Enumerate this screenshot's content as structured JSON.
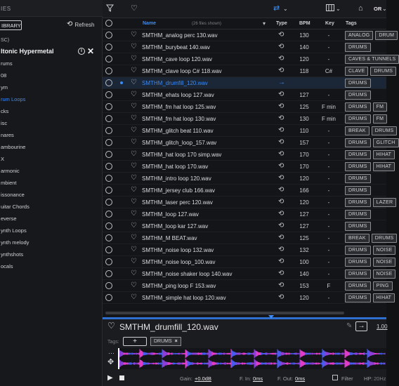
{
  "sidebar": {
    "title": "IES",
    "library_label": "IBRARY",
    "refresh_label": "Refresh",
    "sort_label": "SC)",
    "pack_name": "ltonic Hypermetal",
    "folders": [
      "rums",
      "08",
      "ym",
      "rum Loops",
      "cks",
      "isc",
      "nares",
      "ambourine",
      "X",
      "armonic",
      "mbient",
      "issonance",
      "uitar Chords",
      "everse",
      "ynth Loops",
      "ynth melody",
      "ynthshots",
      "ocals"
    ],
    "active_folder_index": 3
  },
  "toolbar": {
    "or_label": "OR"
  },
  "table": {
    "headers": {
      "name": "Name",
      "count": "(26 files shown)",
      "type": "Type",
      "bpm": "BPM",
      "key": "Key",
      "tags": "Tags"
    },
    "rows": [
      {
        "name": "SMTHM_analog perc 130.wav",
        "bpm": "130",
        "key": "-",
        "tags": [
          "ANALOG",
          "DRUM"
        ]
      },
      {
        "name": "SMTHM_burybeat 140.wav",
        "bpm": "140",
        "key": "-",
        "tags": [
          "DRUMS"
        ]
      },
      {
        "name": "SMTHM_cave loop 120.wav",
        "bpm": "120",
        "key": "-",
        "tags": [
          "CAVES & TUNNELS"
        ]
      },
      {
        "name": "SMTHM_clave loop C# 118.wav",
        "bpm": "118",
        "key": "C#",
        "tags": [
          "CLAVE",
          "DRUMS"
        ]
      },
      {
        "name": "SMTHM_drumfill_120.wav",
        "bpm": "",
        "key": "",
        "tags": [
          "DRUMS"
        ]
      },
      {
        "name": "SMTHM_ehats loop 127.wav",
        "bpm": "127",
        "key": "-",
        "tags": [
          "DRUMS"
        ]
      },
      {
        "name": "SMTHM_fm hat loop 125.wav",
        "bpm": "125",
        "key": "F min",
        "tags": [
          "DRUMS",
          "FM"
        ]
      },
      {
        "name": "SMTHM_fm hat loop 130.wav",
        "bpm": "130",
        "key": "F min",
        "tags": [
          "DRUMS",
          "FM"
        ]
      },
      {
        "name": "SMTHM_glitch beat 110.wav",
        "bpm": "110",
        "key": "-",
        "tags": [
          "BREAK",
          "DRUMS"
        ]
      },
      {
        "name": "SMTHM_glitch_loop_157.wav",
        "bpm": "157",
        "key": "-",
        "tags": [
          "DRUMS",
          "GLITCH"
        ]
      },
      {
        "name": "SMTHM_hat loop 170 simp.wav",
        "bpm": "170",
        "key": "-",
        "tags": [
          "DRUMS",
          "HIHAT"
        ]
      },
      {
        "name": "SMTHM_hat loop 170.wav",
        "bpm": "170",
        "key": "-",
        "tags": [
          "DRUMS",
          "HIHAT"
        ]
      },
      {
        "name": "SMTHM_intro loop 120.wav",
        "bpm": "120",
        "key": "-",
        "tags": [
          "DRUMS"
        ]
      },
      {
        "name": "SMTHM_jersey club 166.wav",
        "bpm": "166",
        "key": "-",
        "tags": [
          "DRUMS"
        ]
      },
      {
        "name": "SMTHM_laser perc 120.wav",
        "bpm": "120",
        "key": "-",
        "tags": [
          "DRUMS",
          "LAZER"
        ]
      },
      {
        "name": "SMTHM_loop 127.wav",
        "bpm": "127",
        "key": "-",
        "tags": [
          "DRUMS"
        ]
      },
      {
        "name": "SMTHM_loop kar 127.wav",
        "bpm": "127",
        "key": "-",
        "tags": [
          "DRUMS"
        ]
      },
      {
        "name": "SMTHM_M BEAT.wav",
        "bpm": "125",
        "key": "-",
        "tags": [
          "BREAK",
          "DRUMS"
        ]
      },
      {
        "name": "SMTHM_noise loop 132.wav",
        "bpm": "132",
        "key": "-",
        "tags": [
          "DRUMS",
          "NOISE"
        ]
      },
      {
        "name": "SMTHM_noise loop_100.wav",
        "bpm": "100",
        "key": "-",
        "tags": [
          "DRUMS",
          "NOISE"
        ]
      },
      {
        "name": "SMTHM_noise shaker loop 140.wav",
        "bpm": "140",
        "key": "-",
        "tags": [
          "DRUMS",
          "NOISE"
        ]
      },
      {
        "name": "SMTHM_ping loop F 153.wav",
        "bpm": "153",
        "key": "F",
        "tags": [
          "DRUMS",
          "PING"
        ]
      },
      {
        "name": "SMTHM_simple hat loop 120.wav",
        "bpm": "120",
        "key": "-",
        "tags": [
          "DRUMS",
          "HIHAT"
        ]
      }
    ],
    "selected_index": 4
  },
  "preview": {
    "file_name": "SMTHM_drumfill_120.wav",
    "version_label": "1.00",
    "tags_label": "Tags:",
    "add_tag_label": "+",
    "tag": "DRUMS",
    "tag_remove": "×",
    "gain_label": "Gain:",
    "gain_value": "+0.0dB",
    "fade_in_label": "F. In:",
    "fade_in_value": "0ms",
    "fade_out_label": "F. Out:",
    "fade_out_value": "0ms",
    "filter_label": "Filter",
    "hp_label": "HP:",
    "hp_value": "20Hz"
  },
  "colors": {
    "accent": "#3c8cf5",
    "wave_purple": "#8b3fd9",
    "wave_pink": "#e03cc8",
    "wave_blue": "#4a5cf0"
  }
}
